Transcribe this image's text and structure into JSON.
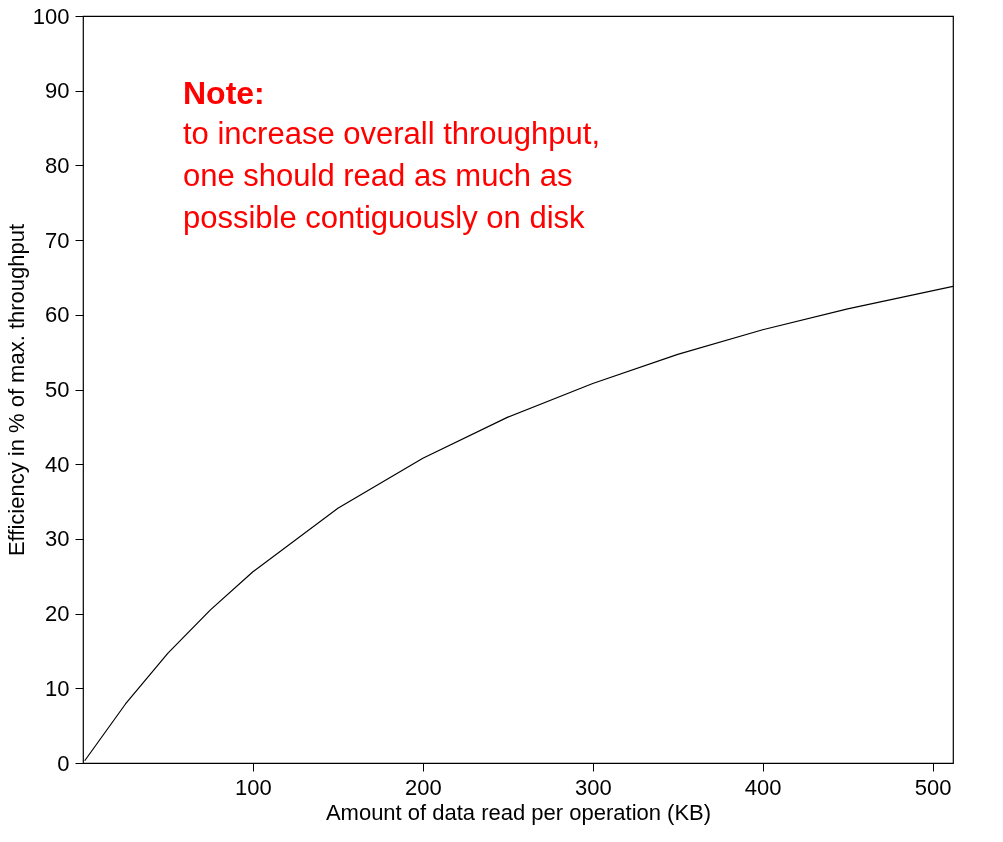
{
  "chart_data": {
    "type": "line",
    "xlabel": "Amount of data read per operation (KB)",
    "ylabel": "Efficiency in % of max. throughput",
    "x": [
      1,
      25,
      50,
      75,
      100,
      150,
      200,
      250,
      300,
      350,
      400,
      450,
      512
    ],
    "series": [
      {
        "color": "#000000",
        "values": [
          0.3,
          7.9,
          14.7,
          20.5,
          25.6,
          34.1,
          40.8,
          46.3,
          50.8,
          54.7,
          58.0,
          60.8,
          63.8
        ]
      }
    ],
    "xlim": [
      0,
      512
    ],
    "xticks": [
      100,
      200,
      300,
      400,
      500
    ],
    "ylim": [
      0,
      100
    ],
    "yticks": [
      0,
      10,
      20,
      30,
      40,
      50,
      60,
      70,
      80,
      90,
      100
    ],
    "grid": false,
    "legend": false,
    "marker": "none",
    "line_style": "solid",
    "annotations": [
      "Note:",
      "to increase overall throughput,",
      "one should read as much as",
      "possible contiguously on disk"
    ]
  }
}
